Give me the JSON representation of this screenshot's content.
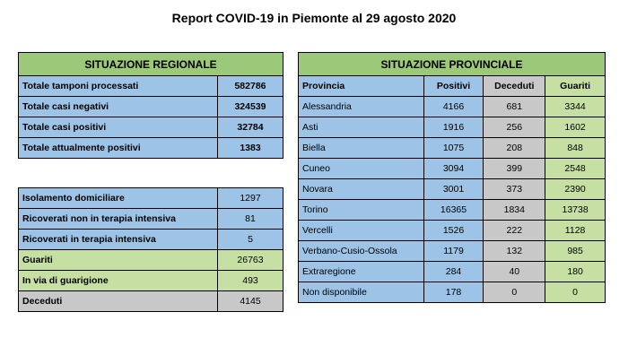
{
  "title": "Report COVID-19 in Piemonte al 29 agosto 2020",
  "regional": {
    "header": "SITUAZIONE REGIONALE",
    "summary": [
      {
        "label": "Totale tamponi processati",
        "value": "582786"
      },
      {
        "label": "Totale casi negativi",
        "value": "324539"
      },
      {
        "label": "Totale casi positivi",
        "value": "32784"
      },
      {
        "label": "Totale attualmente positivi",
        "value": "1383"
      }
    ],
    "details": [
      {
        "label": "Isolamento domiciliare",
        "value": "1297"
      },
      {
        "label": "Ricoverati non in terapia intensiva",
        "value": "81"
      },
      {
        "label": "Ricoverati in terapia intensiva",
        "value": "5"
      },
      {
        "label": "Guariti",
        "value": "26763"
      },
      {
        "label": "In via di guarigione",
        "value": "493"
      },
      {
        "label": "Deceduti",
        "value": "4145"
      }
    ]
  },
  "provincial": {
    "header": "SITUAZIONE PROVINCIALE",
    "columns": [
      "Provincia",
      "Positivi",
      "Deceduti",
      "Guariti"
    ],
    "rows": [
      {
        "provincia": "Alessandria",
        "positivi": "4166",
        "deceduti": "681",
        "guariti": "3344"
      },
      {
        "provincia": "Asti",
        "positivi": "1916",
        "deceduti": "256",
        "guariti": "1602"
      },
      {
        "provincia": "Biella",
        "positivi": "1075",
        "deceduti": "208",
        "guariti": "848"
      },
      {
        "provincia": "Cuneo",
        "positivi": "3094",
        "deceduti": "399",
        "guariti": "2548"
      },
      {
        "provincia": "Novara",
        "positivi": "3001",
        "deceduti": "373",
        "guariti": "2390"
      },
      {
        "provincia": "Torino",
        "positivi": "16365",
        "deceduti": "1834",
        "guariti": "13738"
      },
      {
        "provincia": "Vercelli",
        "positivi": "1526",
        "deceduti": "222",
        "guariti": "1128"
      },
      {
        "provincia": "Verbano-Cusio-Ossola",
        "positivi": "1179",
        "deceduti": "132",
        "guariti": "985"
      },
      {
        "provincia": "Extraregione",
        "positivi": "284",
        "deceduti": "40",
        "guariti": "180"
      },
      {
        "provincia": "Non disponibile",
        "positivi": "178",
        "deceduti": "0",
        "guariti": "0"
      }
    ]
  }
}
